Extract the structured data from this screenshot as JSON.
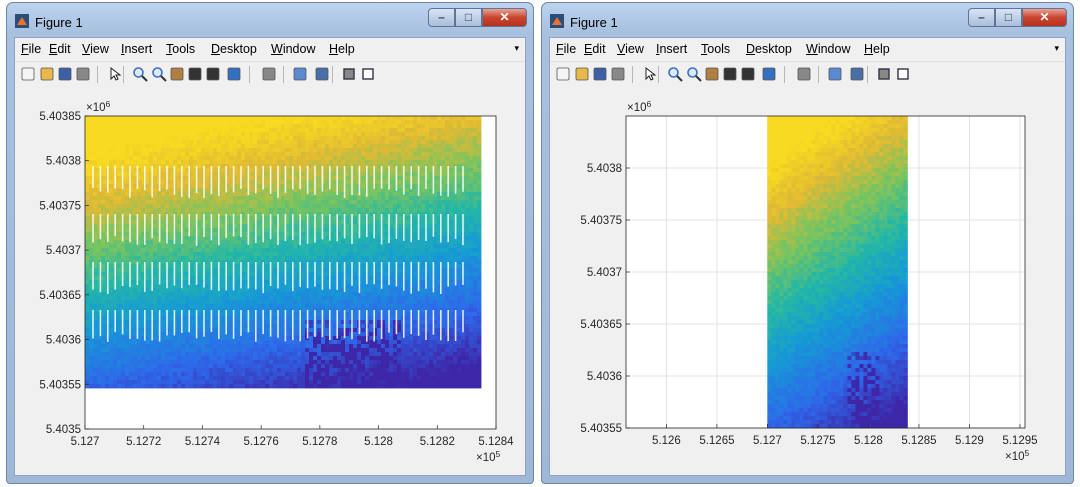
{
  "windows": [
    {
      "title": "Figure 1",
      "menu": [
        "File",
        "Edit",
        "View",
        "Insert",
        "Tools",
        "Desktop",
        "Window",
        "Help"
      ],
      "chart_data": {
        "type": "scatter",
        "x_exponent_label": "×10",
        "x_exponent": "5",
        "y_exponent_label": "×10",
        "y_exponent": "6",
        "xlim": [
          5.127,
          5.1284
        ],
        "ylim": [
          5.4035,
          5.40385
        ],
        "xticks": [
          "5.127",
          "5.1272",
          "5.1274",
          "5.1276",
          "5.1278",
          "5.128",
          "5.1282",
          "5.1284"
        ],
        "yticks": [
          "5.40385",
          "5.4038",
          "5.40375",
          "5.4037",
          "5.40365",
          "5.4036",
          "5.40355",
          "5.4035"
        ],
        "data_extent": {
          "x": [
            5.127,
            5.12834
          ],
          "y": [
            5.40355,
            5.40385
          ]
        },
        "colormap": "parula",
        "grid": false
      }
    },
    {
      "title": "Figure 1",
      "menu": [
        "File",
        "Edit",
        "View",
        "Insert",
        "Tools",
        "Desktop",
        "Window",
        "Help"
      ],
      "chart_data": {
        "type": "scatter",
        "x_exponent_label": "×10",
        "x_exponent": "5",
        "y_exponent_label": "×10",
        "y_exponent": "6",
        "xlim": [
          5.1256,
          5.12955
        ],
        "ylim": [
          5.40355,
          5.40385
        ],
        "xticks": [
          "5.126",
          "5.1265",
          "5.127",
          "5.1275",
          "5.128",
          "5.1285",
          "5.129",
          "5.1295"
        ],
        "yticks": [
          "5.4038",
          "5.40375",
          "5.4037",
          "5.40365",
          "5.4036",
          "5.40355"
        ],
        "data_extent": {
          "x": [
            5.127,
            5.12837
          ],
          "y": [
            5.40355,
            5.40385
          ]
        },
        "colormap": "parula",
        "grid": true
      }
    }
  ],
  "icons": [
    "new-figure-icon",
    "open-file-icon",
    "save-icon",
    "print-icon",
    "pointer-icon",
    "zoom-in-icon",
    "zoom-out-icon",
    "pan-icon",
    "rotate-icon",
    "data-cursor-icon",
    "brush-icon",
    "link-icon",
    "colorbar-icon",
    "legend-icon",
    "hide-plot-tools-icon",
    "show-plot-tools-icon"
  ]
}
